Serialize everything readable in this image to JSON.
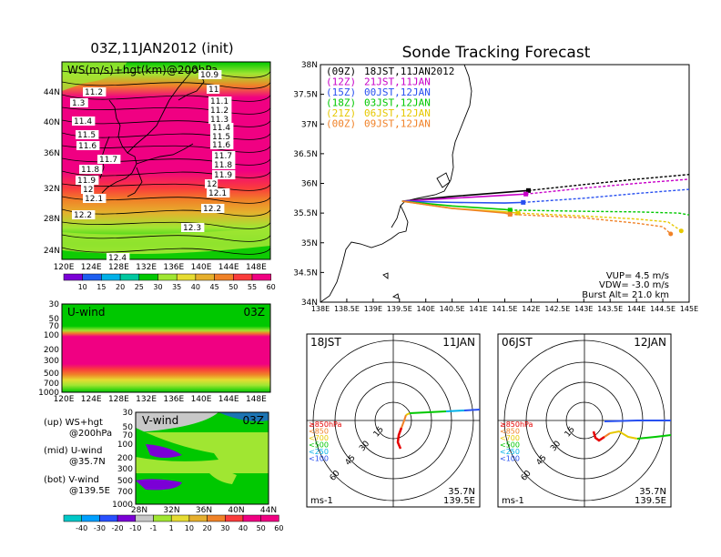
{
  "colors": {
    "ws": [
      "#7b00d6",
      "#1e5ef0",
      "#00b0e8",
      "#00c8a0",
      "#00c800",
      "#a0e632",
      "#e6dc32",
      "#e6af2d",
      "#f08228",
      "#fa3c3c",
      "#f00082"
    ],
    "neg": [
      "#00c8c8",
      "#00a0ff",
      "#2850ff",
      "#7b00d6"
    ],
    "pos": [
      "#a0e632",
      "#e6dc32",
      "#e6af2d",
      "#f08228",
      "#fa3c3c",
      "#f00082"
    ],
    "zero": "#c8c8c8",
    "jst18": "#000000",
    "jst21": "#c800c8",
    "jst00": "#2850f0",
    "jst03": "#00c800",
    "jst06": "#e6c800",
    "jst09": "#f08228"
  },
  "left_top": {
    "title": "03Z,11JAN2012 (init)",
    "subtitle": "WS(m/s)+hgt(km)@200hPa",
    "lat_labels": [
      "44N",
      "40N",
      "36N",
      "32N",
      "28N",
      "24N"
    ],
    "lon_labels": [
      "120E",
      "124E",
      "128E",
      "132E",
      "136E",
      "140E",
      "144E",
      "148E"
    ],
    "contour_labels": [
      {
        "v": "10.9"
      },
      {
        "v": "11.2"
      },
      {
        "v": "1.3"
      },
      {
        "v": "11"
      },
      {
        "v": "11.1"
      },
      {
        "v": "11.2"
      },
      {
        "v": "11.4"
      },
      {
        "v": "11.3"
      },
      {
        "v": "11.4"
      },
      {
        "v": "11.5"
      },
      {
        "v": "11.5"
      },
      {
        "v": "11.6"
      },
      {
        "v": "11.6"
      },
      {
        "v": "11.7"
      },
      {
        "v": "11.7"
      },
      {
        "v": "11.8"
      },
      {
        "v": "11.8"
      },
      {
        "v": "11.9"
      },
      {
        "v": "11.9"
      },
      {
        "v": "12"
      },
      {
        "v": "12"
      },
      {
        "v": "12.1"
      },
      {
        "v": "12.1"
      },
      {
        "v": "12.2"
      },
      {
        "v": "12.2"
      },
      {
        "v": "12.3"
      },
      {
        "v": "12.4"
      }
    ],
    "colorbar": [
      "10",
      "15",
      "20",
      "25",
      "30",
      "35",
      "40",
      "45",
      "50",
      "55",
      "60"
    ]
  },
  "left_mid": {
    "title": "U-wind",
    "time": "03Z",
    "p_labels": [
      "30",
      "50",
      "70",
      "100",
      "200",
      "300",
      "500",
      "700",
      "1000"
    ],
    "lon_labels": [
      "120E",
      "124E",
      "128E",
      "132E",
      "136E",
      "140E",
      "144E",
      "148E"
    ]
  },
  "left_bot": {
    "title": "V-wind",
    "time": "03Z",
    "p_labels": [
      "30",
      "50",
      "70",
      "100",
      "200",
      "300",
      "500",
      "700",
      "1000"
    ],
    "lat_labels": [
      "28N",
      "32N",
      "36N",
      "40N",
      "44N"
    ],
    "colorbar": [
      "-40",
      "-30",
      "-20",
      "-10",
      "-1",
      "1",
      "10",
      "20",
      "30",
      "40",
      "50",
      "60"
    ]
  },
  "legend_left": {
    "up1": "(up) WS+hgt",
    "up2": "@200hPa",
    "mid1": "(mid) U-wind",
    "mid2": "@35.7N",
    "bot1": "(bot) V-wind",
    "bot2": "@139.5E"
  },
  "tracking": {
    "title": "Sonde Tracking Forecast",
    "lat_labels": [
      "38N",
      "37.5N",
      "37N",
      "36.5N",
      "36N",
      "35.5N",
      "35N",
      "34.5N",
      "34N"
    ],
    "lon_labels": [
      "138E",
      "138.5E",
      "139E",
      "139.5E",
      "140E",
      "140.5E",
      "141E",
      "141.5E",
      "142E",
      "142.5E",
      "143E",
      "143.5E",
      "144E",
      "144.5E",
      "145E"
    ],
    "legend": [
      {
        "code": "(09Z)",
        "label": "18JST,11JAN2012",
        "color": "#000000"
      },
      {
        "code": "(12Z)",
        "label": "21JST,11JAN",
        "color": "#c800c8"
      },
      {
        "code": "(15Z)",
        "label": "00JST,12JAN",
        "color": "#2850f0"
      },
      {
        "code": "(18Z)",
        "label": "03JST,12JAN",
        "color": "#00c800"
      },
      {
        "code": "(21Z)",
        "label": "06JST,12JAN",
        "color": "#e6c800"
      },
      {
        "code": "(00Z)",
        "label": "09JST,12JAN",
        "color": "#f08228"
      }
    ],
    "vup": "VUP= 4.5 m/s",
    "vdw": "VDW= -3.0 m/s",
    "burst": "Burst Alt= 21.0 km"
  },
  "hodo_left": {
    "time": "18JST",
    "date": "11JAN",
    "lat": "35.7N",
    "lon": "139.5E",
    "unit": "ms-1",
    "rings": [
      "15",
      "30",
      "45",
      "60"
    ]
  },
  "hodo_right": {
    "time": "06JST",
    "date": "12JAN",
    "lat": "35.7N",
    "lon": "139.5E",
    "unit": "ms-1",
    "rings": [
      "15",
      "30",
      "45",
      "60"
    ]
  },
  "hodo_legend": [
    {
      "label": "≥850hPa",
      "color": "#e60000"
    },
    {
      "label": "<850",
      "color": "#f08228"
    },
    {
      "label": "<700",
      "color": "#e6c800"
    },
    {
      "label": "<500",
      "color": "#00c800"
    },
    {
      "label": "<250",
      "color": "#00b0e8"
    },
    {
      "label": "<100",
      "color": "#2850f0"
    }
  ],
  "chart_data": [
    {
      "type": "heatmap",
      "title": "03Z,11JAN2012 (init)",
      "subtitle": "WS(m/s)+hgt(km)@200hPa",
      "xlabel": "",
      "ylabel": "",
      "xlim": [
        120,
        150
      ],
      "ylim": [
        22,
        47
      ],
      "colorbar_levels": [
        10,
        15,
        20,
        25,
        30,
        35,
        40,
        45,
        50,
        55,
        60
      ],
      "height_contours_km": [
        10.9,
        11,
        11.1,
        11.2,
        11.3,
        11.4,
        11.5,
        11.6,
        11.7,
        11.8,
        11.9,
        12,
        12.1,
        12.2,
        12.3,
        12.4
      ]
    },
    {
      "type": "heatmap",
      "title": "U-wind",
      "xlim": [
        120,
        150
      ],
      "ylim": [
        1000,
        30
      ],
      "lat": "35.7N"
    },
    {
      "type": "heatmap",
      "title": "V-wind",
      "xlim": [
        28,
        44
      ],
      "ylim": [
        1000,
        30
      ],
      "lon": "139.5E",
      "colorbar_levels": [
        -40,
        -30,
        -20,
        -10,
        -1,
        1,
        10,
        20,
        30,
        40,
        50,
        60
      ]
    },
    {
      "type": "line",
      "title": "Sonde Tracking Forecast",
      "xlim": [
        138,
        145
      ],
      "ylim": [
        34,
        38
      ],
      "launch": {
        "x": 139.55,
        "y": 35.7
      },
      "series": [
        {
          "name": "18JST,11JAN2012",
          "x": [
            139.55,
            140.5,
            141.5,
            141.95,
            143,
            144,
            145
          ],
          "y": [
            35.7,
            35.78,
            35.85,
            35.88,
            35.98,
            36.07,
            36.15
          ]
        },
        {
          "name": "21JST,11JAN",
          "x": [
            139.55,
            140.5,
            141.5,
            141.9,
            143,
            144,
            145
          ],
          "y": [
            35.7,
            35.75,
            35.8,
            35.82,
            35.92,
            36,
            36.07
          ]
        },
        {
          "name": "00JST,12JAN",
          "x": [
            139.55,
            140.5,
            141.5,
            141.85,
            143,
            144,
            145
          ],
          "y": [
            35.7,
            35.68,
            35.67,
            35.68,
            35.75,
            35.83,
            35.9
          ]
        },
        {
          "name": "03JST,12JAN",
          "x": [
            139.55,
            140.5,
            141.5,
            141.6,
            143,
            144,
            144.8,
            145
          ],
          "y": [
            35.7,
            35.62,
            35.56,
            35.55,
            35.53,
            35.52,
            35.5,
            35.47
          ]
        },
        {
          "name": "06JST,12JAN",
          "x": [
            139.55,
            140.5,
            141.5,
            141.75,
            143,
            144,
            144.6,
            144.85
          ],
          "y": [
            35.7,
            35.58,
            35.52,
            35.5,
            35.45,
            35.4,
            35.35,
            35.2
          ]
        },
        {
          "name": "09JST,12JAN",
          "x": [
            139.55,
            140.5,
            141.5,
            141.6,
            143,
            144,
            144.5,
            144.65
          ],
          "y": [
            35.7,
            35.58,
            35.5,
            35.48,
            35.42,
            35.33,
            35.27,
            35.15
          ]
        }
      ]
    }
  ]
}
